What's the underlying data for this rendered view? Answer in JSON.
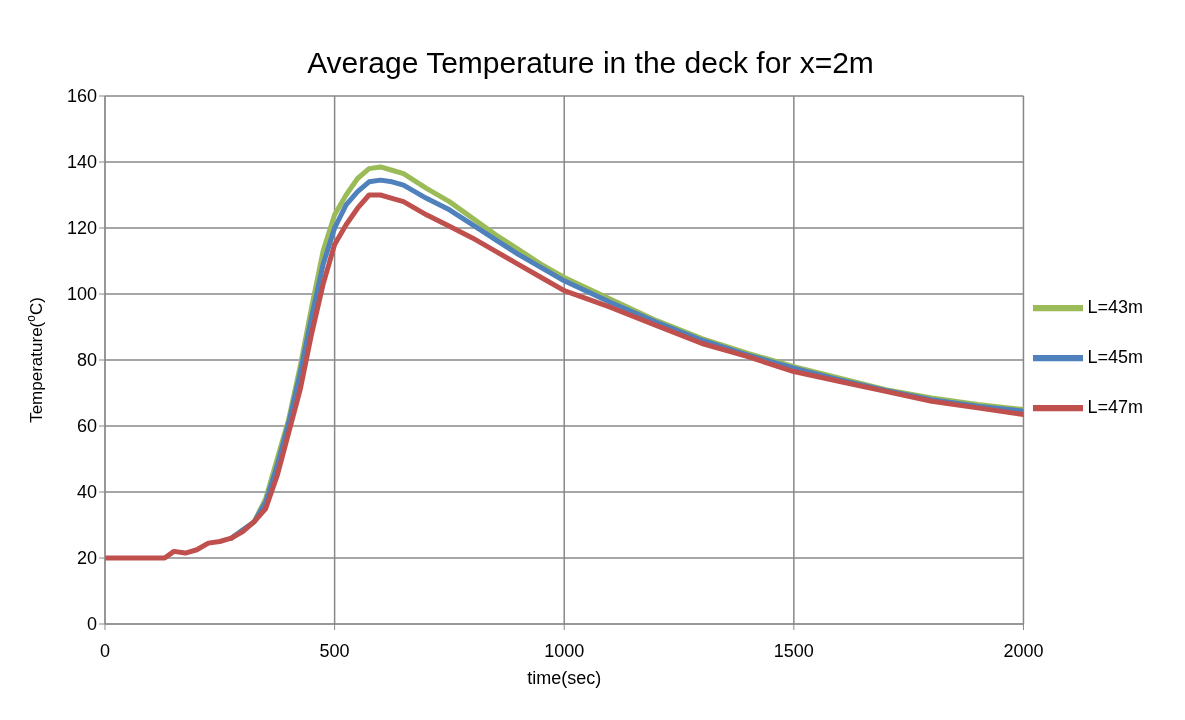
{
  "chart_data": {
    "type": "line",
    "title": "Average Temperature in the deck for x=2m",
    "xlabel": "time(sec)",
    "ylabel": "Temperature($^{o}$C)",
    "x": [
      0,
      130,
      150,
      175,
      200,
      225,
      250,
      275,
      300,
      325,
      350,
      375,
      400,
      425,
      450,
      475,
      500,
      525,
      550,
      575,
      600,
      625,
      650,
      700,
      750,
      800,
      850,
      900,
      950,
      1000,
      1100,
      1200,
      1300,
      1400,
      1500,
      1600,
      1700,
      1800,
      1900,
      2000
    ],
    "series": [
      {
        "name": "L=43m",
        "color": "#9bbb59",
        "values": [
          null,
          null,
          null,
          null,
          null,
          null,
          null,
          26,
          28.5,
          31,
          38,
          50,
          62,
          78,
          96,
          113,
          124,
          130,
          135,
          138,
          138.5,
          137.5,
          136.5,
          132,
          128,
          123,
          118,
          113.5,
          109,
          105,
          98.5,
          92,
          86.5,
          82,
          78,
          74.5,
          71,
          68.5,
          66.5,
          65
        ]
      },
      {
        "name": "L=45m",
        "color": "#4f81bd",
        "values": [
          null,
          null,
          null,
          null,
          null,
          null,
          null,
          26,
          28.5,
          31,
          37,
          48,
          61,
          76,
          93,
          109,
          120,
          127,
          131,
          134,
          134.5,
          134,
          133,
          129,
          125.5,
          121,
          116.5,
          112,
          108,
          104,
          97.5,
          91.5,
          86,
          81.5,
          77.5,
          74,
          70.8,
          68,
          66,
          64.5
        ]
      },
      {
        "name": "L=47m",
        "color": "#c0504d",
        "values": [
          20,
          20,
          22,
          21.5,
          22.5,
          24.5,
          25,
          26,
          28,
          31,
          35,
          45,
          58,
          71,
          88,
          103,
          115,
          121,
          126,
          130,
          130,
          129,
          128,
          124,
          120.5,
          117,
          113,
          109,
          105,
          101,
          96,
          90.5,
          85,
          81,
          76.5,
          73.5,
          70.5,
          67.5,
          65.5,
          63.5
        ]
      }
    ],
    "xlim": [
      0,
      2000
    ],
    "xticks": [
      0,
      500,
      1000,
      1500,
      2000
    ],
    "ylim": [
      0,
      160
    ],
    "yticks": [
      0,
      20,
      40,
      60,
      80,
      100,
      120,
      140,
      160
    ],
    "grid": true,
    "legend": "right",
    "marker": "none",
    "line_style": "solid"
  }
}
